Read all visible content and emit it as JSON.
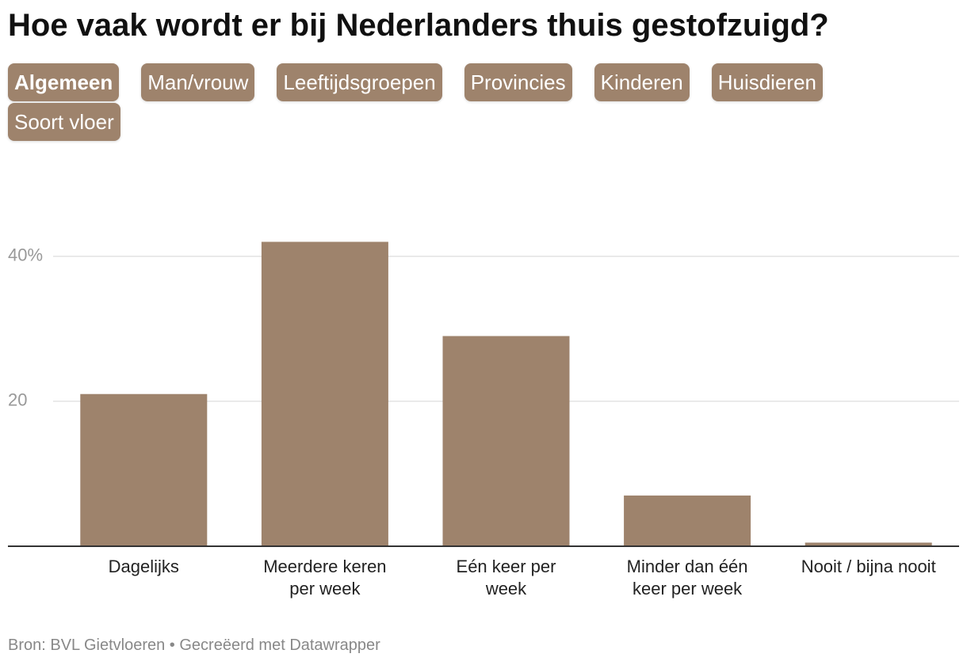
{
  "chart_data": {
    "type": "bar",
    "title": "Hoe vaak wordt er bij Nederlanders thuis gestofzuigd?",
    "tabs": [
      "Algemeen",
      "Man/vrouw",
      "Leeftijdsgroepen",
      "Provincies",
      "Kinderen",
      "Huisdieren",
      "Soort vloer"
    ],
    "categories": [
      "Dagelijks",
      "Meerdere keren per week",
      "Eén keer per week",
      "Minder dan één keer per week",
      "Nooit / bijna nooit"
    ],
    "values": [
      21,
      42,
      29,
      7,
      0.5
    ],
    "color": "#9e836c",
    "ylim": [
      0,
      45
    ],
    "yticks": [
      20,
      {
        "value": 40,
        "label": "40%"
      }
    ],
    "grid": true,
    "source": "Bron: BVL Gietvloeren • Gecreëerd met Datawrapper"
  }
}
